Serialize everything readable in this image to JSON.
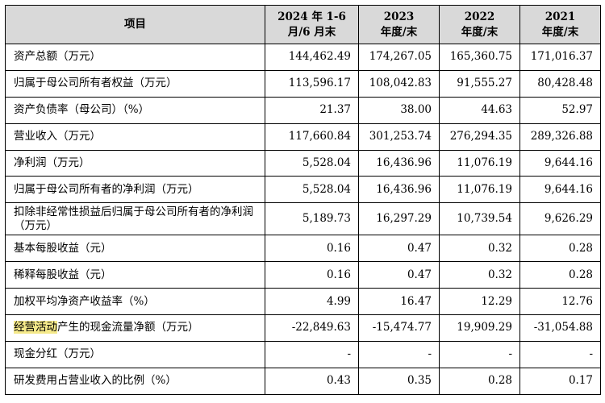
{
  "table": {
    "headers": [
      {
        "line1": "项目",
        "line2": ""
      },
      {
        "line1": "2024 年 1-6",
        "line2": "月/6 月末"
      },
      {
        "line1": "2023",
        "line2": "年度/末"
      },
      {
        "line1": "2022",
        "line2": "年度/末"
      },
      {
        "line1": "2021",
        "line2": "年度/末"
      }
    ],
    "rows": [
      {
        "label": "资产总额（万元）",
        "values": [
          "144,462.49",
          "174,267.05",
          "165,360.75",
          "171,016.37"
        ]
      },
      {
        "label": "归属于母公司所有者权益（万元）",
        "values": [
          "113,596.17",
          "108,042.83",
          "91,555.27",
          "80,428.48"
        ]
      },
      {
        "label": "资产负债率（母公司）（%）",
        "values": [
          "21.37",
          "38.00",
          "44.63",
          "52.97"
        ]
      },
      {
        "label": "营业收入（万元）",
        "values": [
          "117,660.84",
          "301,253.74",
          "276,294.35",
          "289,326.88"
        ]
      },
      {
        "label": "净利润（万元）",
        "values": [
          "5,528.04",
          "16,436.96",
          "11,076.19",
          "9,644.16"
        ]
      },
      {
        "label": "归属于母公司所有者的净利润（万元）",
        "values": [
          "5,528.04",
          "16,436.96",
          "11,076.19",
          "9,644.16"
        ]
      },
      {
        "label": "扣除非经常性损益后归属于母公司所有者的净利润（万元）",
        "values": [
          "5,189.73",
          "16,297.29",
          "10,739.54",
          "9,626.29"
        ]
      },
      {
        "label": "基本每股收益（元）",
        "values": [
          "0.16",
          "0.47",
          "0.32",
          "0.28"
        ]
      },
      {
        "label": "稀释每股收益（元）",
        "values": [
          "0.16",
          "0.47",
          "0.32",
          "0.28"
        ]
      },
      {
        "label": "加权平均净资产收益率（%）",
        "values": [
          "4.99",
          "16.47",
          "12.29",
          "12.76"
        ]
      },
      {
        "label_highlight": "经营活动",
        "label_rest": "产生的现金流量净额（万元）",
        "values": [
          "-22,849.63",
          "-15,474.77",
          "19,909.29",
          "-31,054.88"
        ]
      },
      {
        "label": "现金分红（万元）",
        "values": [
          "-",
          "-",
          "-",
          "-"
        ]
      },
      {
        "label": "研发费用占营业收入的比例（%）",
        "values": [
          "0.43",
          "0.35",
          "0.28",
          "0.17"
        ]
      }
    ]
  }
}
